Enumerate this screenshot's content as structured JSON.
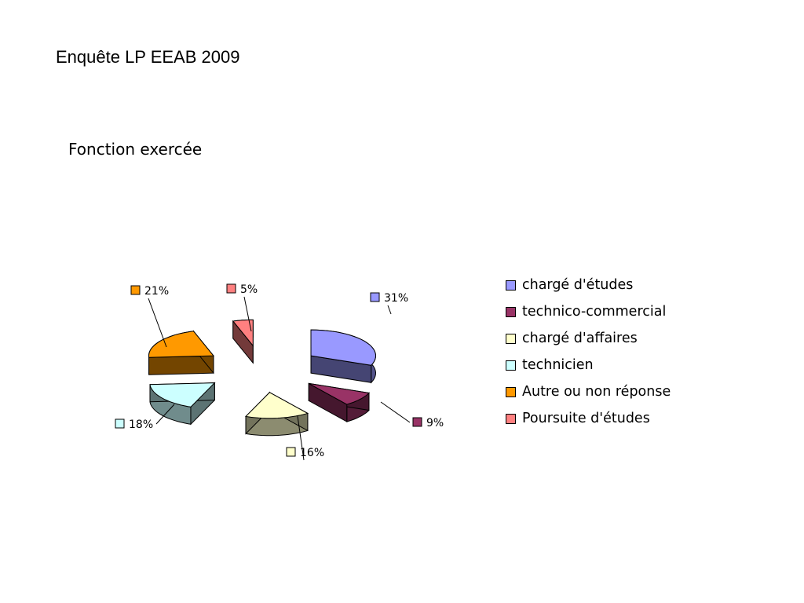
{
  "slide": {
    "title": "Enquête LP EEAB 2009"
  },
  "chart_data": {
    "type": "pie",
    "title": "Fonction exercée",
    "exploded": true,
    "three_d": true,
    "legend_position": "right",
    "series": [
      {
        "name": "chargé d'études",
        "value": 31,
        "label": "31%",
        "color": "#9999ff"
      },
      {
        "name": "technico-commercial",
        "value": 9,
        "label": "9%",
        "color": "#993366"
      },
      {
        "name": "chargé d'affaires",
        "value": 16,
        "label": "16%",
        "color": "#ffffcc"
      },
      {
        "name": "technicien",
        "value": 18,
        "label": "18%",
        "color": "#ccffff"
      },
      {
        "name": "Autre ou non réponse",
        "value": 21,
        "label": "21%",
        "color": "#ff9900"
      },
      {
        "name": "Poursuite d'études",
        "value": 5,
        "label": "5%",
        "color": "#ff8080"
      }
    ]
  }
}
